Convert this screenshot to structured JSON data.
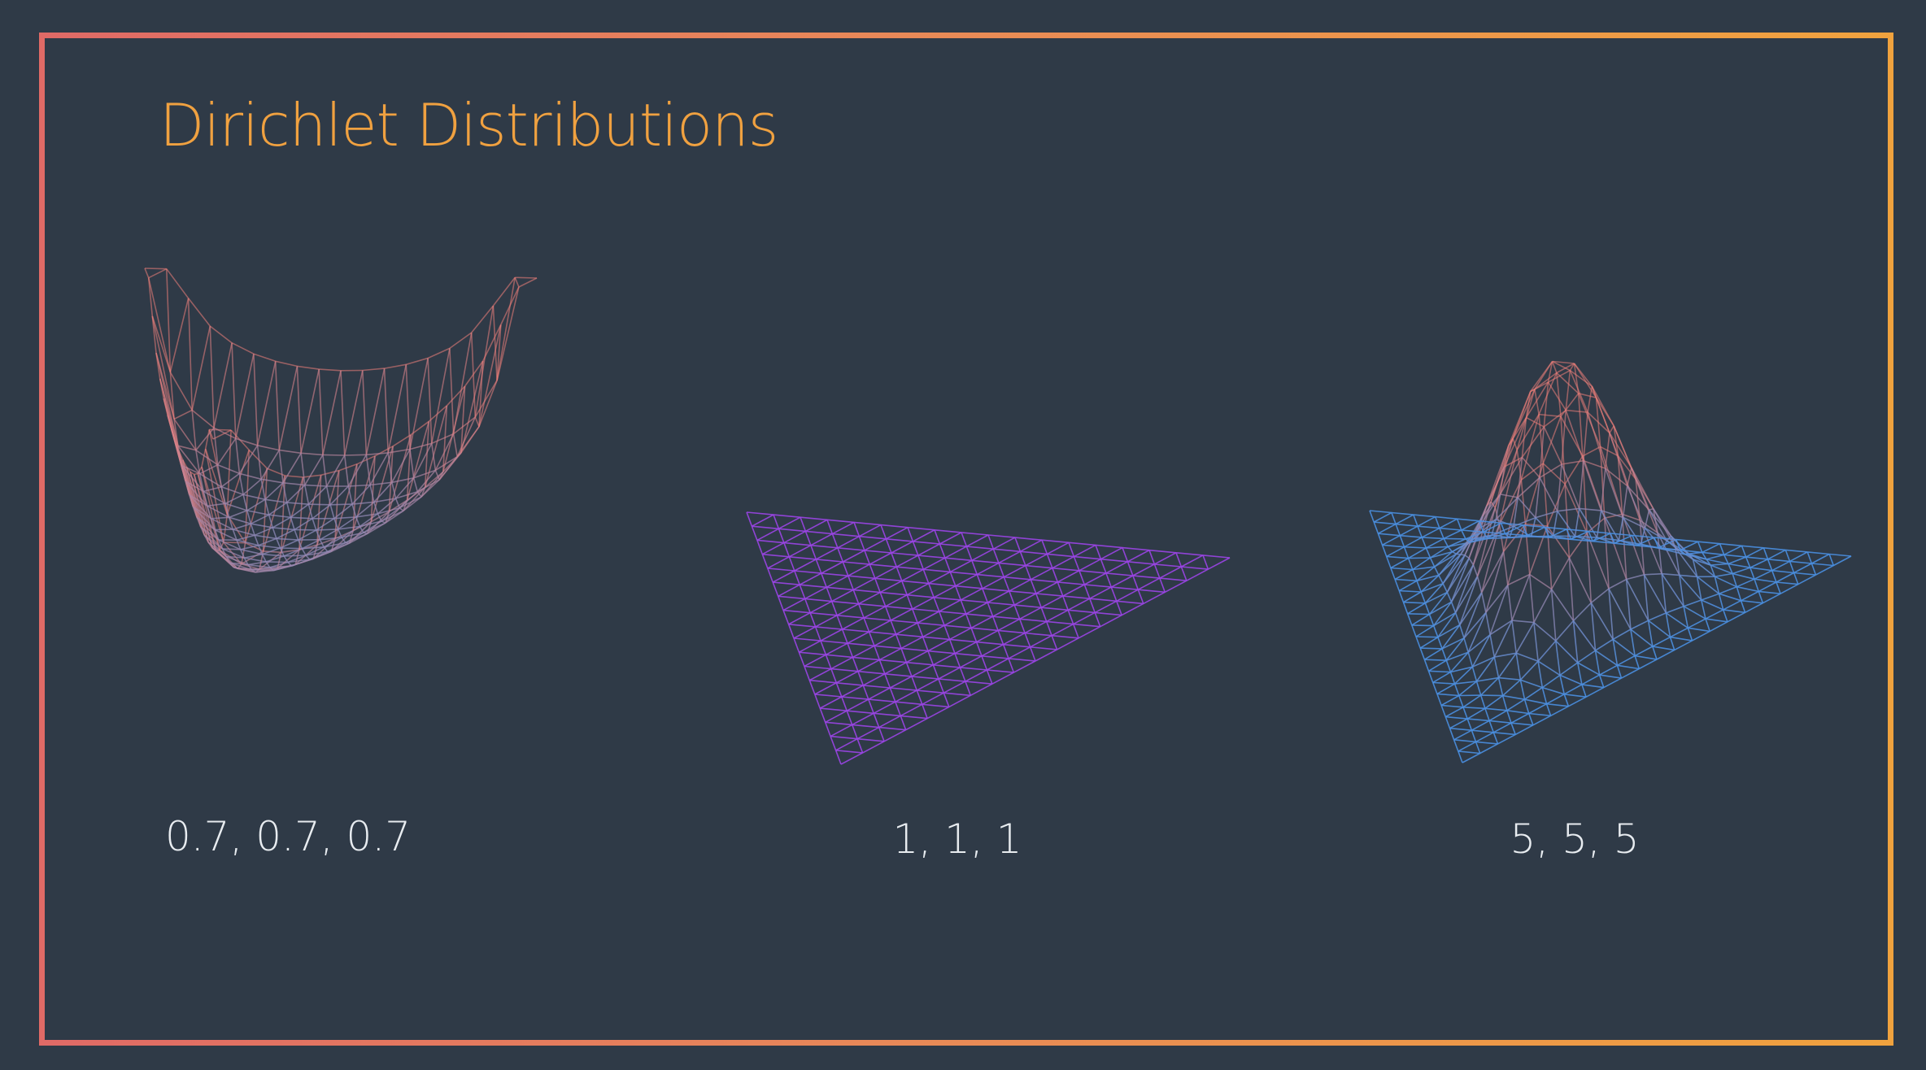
{
  "title": "Dirichlet Distributions",
  "panels": [
    {
      "label": "0.7, 0.7, 0.7",
      "alpha": [
        0.7,
        0.7,
        0.7
      ]
    },
    {
      "label": "1, 1, 1",
      "alpha": [
        1,
        1,
        1
      ]
    },
    {
      "label": "5, 5, 5",
      "alpha": [
        5,
        5,
        5
      ]
    }
  ],
  "colors": {
    "background": "#2f3a47",
    "title": "#f0a140",
    "frame_gradient": [
      "#e06a66",
      "#f0a23e"
    ],
    "surface_low": "#4a8fe0",
    "surface_high": "#f07f7a",
    "surface_uniform": "#9b45e6",
    "label": "#e8ecf0"
  }
}
